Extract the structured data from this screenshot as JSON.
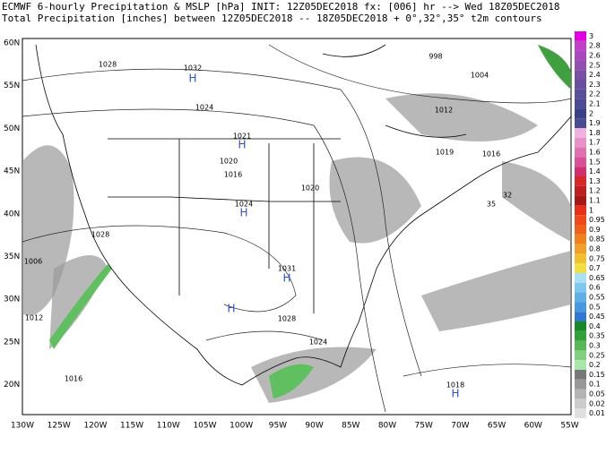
{
  "header": {
    "line1": "ECMWF 6-hourly Precipitation & MSLP [hPa] INIT: 12Z05DEC2018 fx: [006] hr --> Wed 18Z05DEC2018",
    "line2": "Total Precipitation [inches] between 12Z05DEC2018 -- 18Z05DEC2018 + 0°,32°,35° t2m contours"
  },
  "map": {
    "lat_labels": [
      "60N",
      "55N",
      "50N",
      "45N",
      "40N",
      "35N",
      "30N",
      "25N",
      "20N"
    ],
    "lon_labels": [
      "130W",
      "125W",
      "120W",
      "115W",
      "110W",
      "105W",
      "100W",
      "95W",
      "90W",
      "85W",
      "80W",
      "75W",
      "70W",
      "65W",
      "60W",
      "55W"
    ],
    "pressure_labels": [
      "1032",
      "H",
      "1021",
      "H",
      "1024",
      "H",
      "1031",
      "H",
      "998",
      "1004",
      "1019",
      "1018",
      "H",
      "1006",
      "1028",
      "1024",
      "1028",
      "1016",
      "1020",
      "1012",
      "1016",
      "1012",
      "1016",
      "1024",
      "1020",
      "32",
      "35",
      "1028",
      "H"
    ]
  },
  "colorbar": {
    "labels": [
      "3",
      "2.8",
      "2.6",
      "2.5",
      "2.4",
      "2.3",
      "2.2",
      "2.1",
      "2",
      "1.9",
      "1.8",
      "1.7",
      "1.6",
      "1.5",
      "1.4",
      "1.3",
      "1.2",
      "1.1",
      "1",
      "0.95",
      "0.9",
      "0.85",
      "0.8",
      "0.75",
      "0.7",
      "0.65",
      "0.6",
      "0.55",
      "0.5",
      "0.45",
      "0.4",
      "0.35",
      "0.3",
      "0.25",
      "0.2",
      "0.15",
      "0.1",
      "0.05",
      "0.02",
      "0.01"
    ],
    "colors": [
      "#e000e0",
      "#c040c8",
      "#a848bc",
      "#9050b0",
      "#7a50a4",
      "#68509c",
      "#585098",
      "#4c4c94",
      "#3c4088",
      "#4a4c90",
      "#f0b0e0",
      "#e890c8",
      "#e070b0",
      "#d85098",
      "#d03070",
      "#d82828",
      "#c02020",
      "#a81818",
      "#e83018",
      "#f04818",
      "#f06018",
      "#f08020",
      "#f0a028",
      "#f0c030",
      "#f0e040",
      "#a8e0f8",
      "#80c8f0",
      "#60b0e8",
      "#4898e0",
      "#3078d0",
      "#188828",
      "#30a038",
      "#58b858",
      "#80d080",
      "#a8e8a8",
      "#787878",
      "#989898",
      "#b4b4b4",
      "#cccccc",
      "#e0e0e0"
    ]
  }
}
